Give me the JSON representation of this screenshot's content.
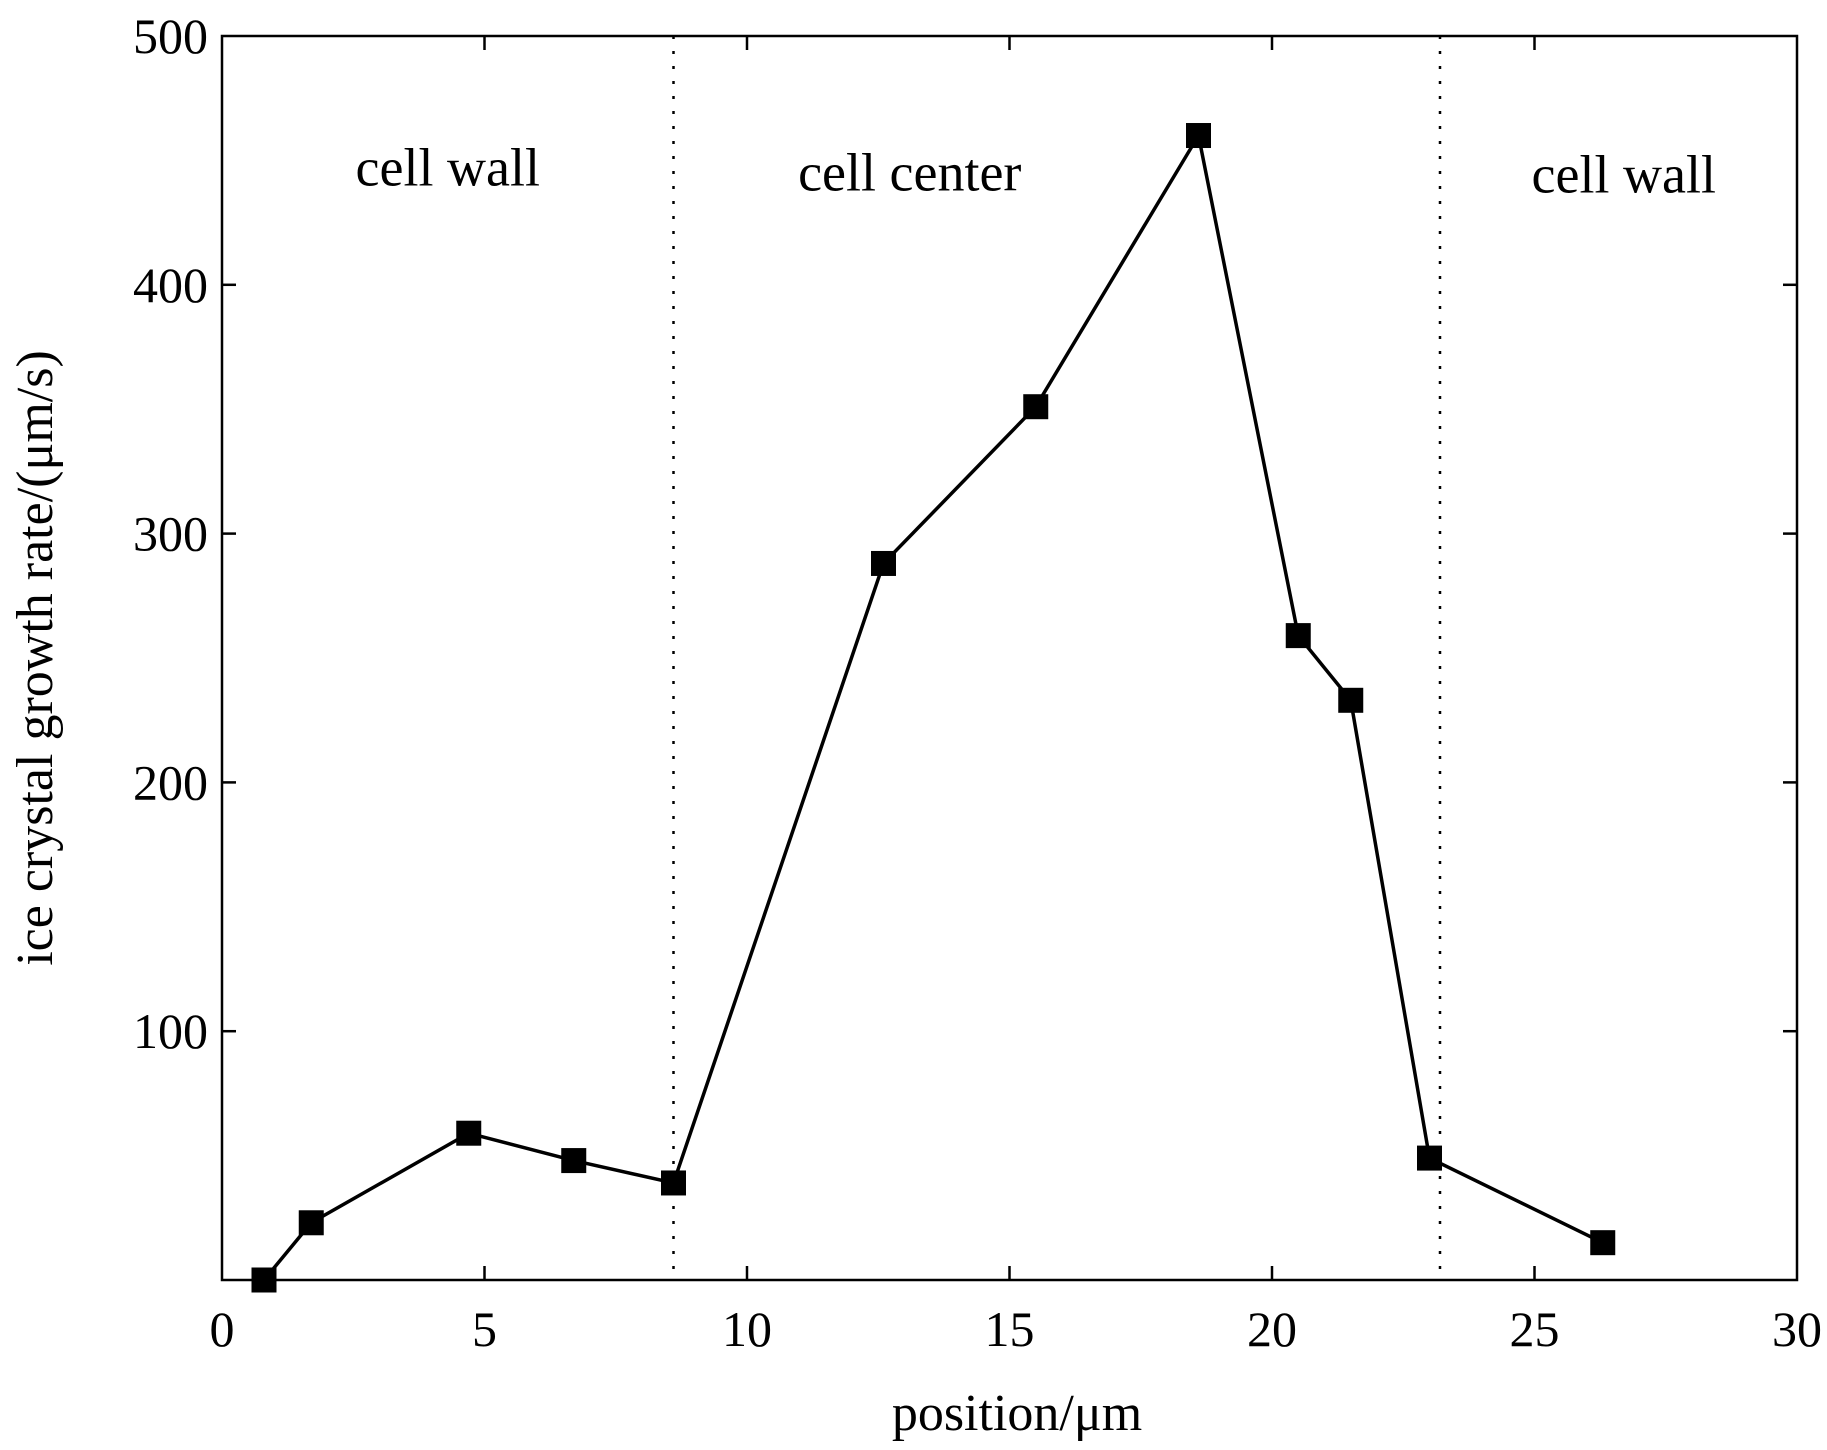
{
  "chart_data": {
    "type": "line",
    "xlabel": "position/μm",
    "ylabel": "ice crystal growth rate/(μm/s)",
    "xlim": [
      0,
      30
    ],
    "ylim": [
      0,
      500
    ],
    "x_ticks": [
      "0",
      "5",
      "10",
      "15",
      "20",
      "25",
      "30"
    ],
    "y_ticks": [
      "100",
      "200",
      "300",
      "400",
      "500"
    ],
    "grid": false,
    "colors": {
      "line": "#000000",
      "marker": "#000000",
      "divider": "#000000"
    },
    "marker": "square",
    "series": [
      {
        "x": [
          0.8,
          1.7,
          4.7,
          6.7,
          8.6,
          12.6,
          15.5,
          18.6,
          20.5,
          21.5,
          23.0,
          26.3
        ],
        "y": [
          0,
          23,
          59,
          48,
          39,
          288,
          351,
          460,
          259,
          233,
          49,
          15
        ]
      }
    ],
    "dividers": [
      8.6,
      23.2
    ],
    "annotations": [
      {
        "text": "cell wall",
        "x": 4.3,
        "y": 440
      },
      {
        "text": "cell center",
        "x": 13.1,
        "y": 438
      },
      {
        "text": "cell wall",
        "x": 26.7,
        "y": 437
      }
    ]
  }
}
